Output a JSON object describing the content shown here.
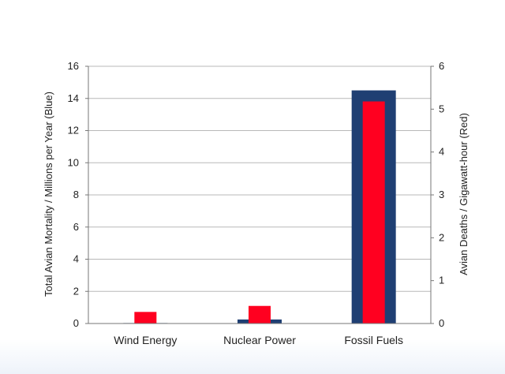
{
  "chart_data": {
    "type": "bar",
    "categories": [
      "Wind Energy",
      "Nuclear Power",
      "Fossil Fuels"
    ],
    "series": [
      {
        "axis": "left",
        "color": "#1f3f73",
        "values": [
          0.03,
          0.25,
          14.5
        ]
      },
      {
        "axis": "right",
        "color": "#ff0020",
        "values": [
          0.27,
          0.41,
          5.18
        ]
      }
    ],
    "ylabel": "Total Avian Mortality / Millions per Year (Blue)",
    "y2label": "Avian Deaths / Gigawatt-hour (Red)",
    "ylim": [
      0,
      16
    ],
    "y2lim": [
      0,
      6
    ],
    "yticks": [
      0,
      2,
      4,
      6,
      8,
      10,
      12,
      14,
      16
    ],
    "y2ticks": [
      0,
      1,
      2,
      3,
      4,
      5,
      6
    ],
    "grid": true,
    "legend": "none"
  }
}
